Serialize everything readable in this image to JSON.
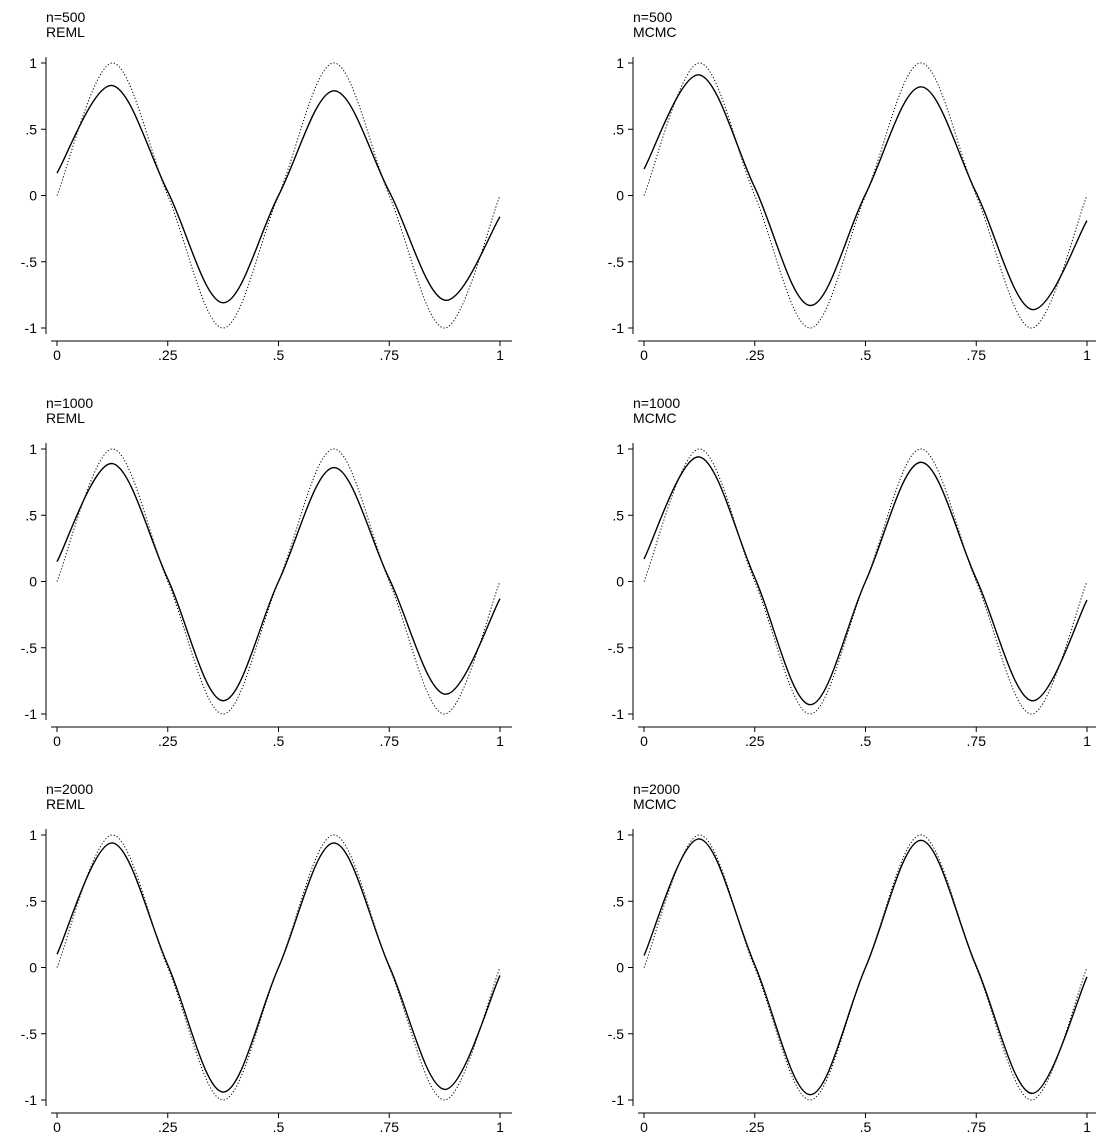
{
  "chart_data": [
    {
      "type": "line",
      "title": "n=500",
      "subtitle": "REML",
      "xlim": [
        0,
        1
      ],
      "ylim": [
        -1,
        1
      ],
      "xticks": [
        0,
        0.25,
        0.5,
        0.75,
        1
      ],
      "xtick_labels": [
        "0",
        ".25",
        ".5",
        ".75",
        "1"
      ],
      "yticks": [
        1,
        0.5,
        0,
        -0.5,
        -1
      ],
      "ytick_labels": [
        "1",
        ".5",
        "0",
        "-.5",
        "-1"
      ],
      "grid": false,
      "series": [
        {
          "style": "solid",
          "x": [
            0,
            0.125,
            0.25,
            0.375,
            0.5,
            0.625,
            0.75,
            0.875,
            1
          ],
          "y": [
            0.17,
            0.83,
            0.03,
            -0.81,
            0.0,
            0.79,
            0.03,
            -0.79,
            -0.16
          ]
        },
        {
          "style": "dotted",
          "x": [
            0,
            0.125,
            0.25,
            0.375,
            0.5,
            0.625,
            0.75,
            0.875,
            1
          ],
          "y": [
            0,
            1,
            0,
            -1,
            0,
            1,
            0,
            -1,
            0
          ]
        }
      ]
    },
    {
      "type": "line",
      "title": "n=500",
      "subtitle": "MCMC",
      "xlim": [
        0,
        1
      ],
      "ylim": [
        -1,
        1
      ],
      "xticks": [
        0,
        0.25,
        0.5,
        0.75,
        1
      ],
      "xtick_labels": [
        "0",
        ".25",
        ".5",
        ".75",
        "1"
      ],
      "yticks": [
        1,
        0.5,
        0,
        -0.5,
        -1
      ],
      "ytick_labels": [
        "1",
        ".5",
        "0",
        "-.5",
        "-1"
      ],
      "grid": false,
      "series": [
        {
          "style": "solid",
          "x": [
            0,
            0.125,
            0.25,
            0.375,
            0.5,
            0.625,
            0.75,
            0.875,
            1
          ],
          "y": [
            0.2,
            0.91,
            0.06,
            -0.83,
            0.01,
            0.82,
            0.02,
            -0.86,
            -0.19
          ]
        },
        {
          "style": "dotted",
          "x": [
            0,
            0.125,
            0.25,
            0.375,
            0.5,
            0.625,
            0.75,
            0.875,
            1
          ],
          "y": [
            0,
            1,
            0,
            -1,
            0,
            1,
            0,
            -1,
            0
          ]
        }
      ]
    },
    {
      "type": "line",
      "title": "n=1000",
      "subtitle": "REML",
      "xlim": [
        0,
        1
      ],
      "ylim": [
        -1,
        1
      ],
      "xticks": [
        0,
        0.25,
        0.5,
        0.75,
        1
      ],
      "xtick_labels": [
        "0",
        ".25",
        ".5",
        ".75",
        "1"
      ],
      "yticks": [
        1,
        0.5,
        0,
        -0.5,
        -1
      ],
      "ytick_labels": [
        "1",
        ".5",
        "0",
        "-.5",
        "-1"
      ],
      "grid": false,
      "series": [
        {
          "style": "solid",
          "x": [
            0,
            0.125,
            0.25,
            0.375,
            0.5,
            0.625,
            0.75,
            0.875,
            1
          ],
          "y": [
            0.15,
            0.89,
            0.02,
            -0.9,
            0.0,
            0.86,
            0.02,
            -0.85,
            -0.13
          ]
        },
        {
          "style": "dotted",
          "x": [
            0,
            0.125,
            0.25,
            0.375,
            0.5,
            0.625,
            0.75,
            0.875,
            1
          ],
          "y": [
            0,
            1,
            0,
            -1,
            0,
            1,
            0,
            -1,
            0
          ]
        }
      ]
    },
    {
      "type": "line",
      "title": "n=1000",
      "subtitle": "MCMC",
      "xlim": [
        0,
        1
      ],
      "ylim": [
        -1,
        1
      ],
      "xticks": [
        0,
        0.25,
        0.5,
        0.75,
        1
      ],
      "xtick_labels": [
        "0",
        ".25",
        ".5",
        ".75",
        "1"
      ],
      "yticks": [
        1,
        0.5,
        0,
        -0.5,
        -1
      ],
      "ytick_labels": [
        "1",
        ".5",
        "0",
        "-.5",
        "-1"
      ],
      "grid": false,
      "series": [
        {
          "style": "solid",
          "x": [
            0,
            0.125,
            0.25,
            0.375,
            0.5,
            0.625,
            0.75,
            0.875,
            1
          ],
          "y": [
            0.17,
            0.94,
            0.03,
            -0.93,
            0.0,
            0.9,
            0.02,
            -0.9,
            -0.14
          ]
        },
        {
          "style": "dotted",
          "x": [
            0,
            0.125,
            0.25,
            0.375,
            0.5,
            0.625,
            0.75,
            0.875,
            1
          ],
          "y": [
            0,
            1,
            0,
            -1,
            0,
            1,
            0,
            -1,
            0
          ]
        }
      ]
    },
    {
      "type": "line",
      "title": "n=2000",
      "subtitle": "REML",
      "xlim": [
        0,
        1
      ],
      "ylim": [
        -1,
        1
      ],
      "xticks": [
        0,
        0.25,
        0.5,
        0.75,
        1
      ],
      "xtick_labels": [
        "0",
        ".25",
        ".5",
        ".75",
        "1"
      ],
      "yticks": [
        1,
        0.5,
        0,
        -0.5,
        -1
      ],
      "ytick_labels": [
        "1",
        ".5",
        "0",
        "-.5",
        "-1"
      ],
      "grid": false,
      "series": [
        {
          "style": "solid",
          "x": [
            0,
            0.125,
            0.25,
            0.375,
            0.5,
            0.625,
            0.75,
            0.875,
            1
          ],
          "y": [
            0.1,
            0.94,
            0.02,
            -0.94,
            0.0,
            0.94,
            0.01,
            -0.92,
            -0.06
          ]
        },
        {
          "style": "dotted",
          "x": [
            0,
            0.125,
            0.25,
            0.375,
            0.5,
            0.625,
            0.75,
            0.875,
            1
          ],
          "y": [
            0,
            1,
            0,
            -1,
            0,
            1,
            0,
            -1,
            0
          ]
        }
      ]
    },
    {
      "type": "line",
      "title": "n=2000",
      "subtitle": "MCMC",
      "xlim": [
        0,
        1
      ],
      "ylim": [
        -1,
        1
      ],
      "xticks": [
        0,
        0.25,
        0.5,
        0.75,
        1
      ],
      "xtick_labels": [
        "0",
        ".25",
        ".5",
        ".75",
        "1"
      ],
      "yticks": [
        1,
        0.5,
        0,
        -0.5,
        -1
      ],
      "ytick_labels": [
        "1",
        ".5",
        "0",
        "-.5",
        "-1"
      ],
      "grid": false,
      "series": [
        {
          "style": "solid",
          "x": [
            0,
            0.125,
            0.25,
            0.375,
            0.5,
            0.625,
            0.75,
            0.875,
            1
          ],
          "y": [
            0.09,
            0.97,
            0.02,
            -0.96,
            0.0,
            0.96,
            0.01,
            -0.95,
            -0.07
          ]
        },
        {
          "style": "dotted",
          "x": [
            0,
            0.125,
            0.25,
            0.375,
            0.5,
            0.625,
            0.75,
            0.875,
            1
          ],
          "y": [
            0,
            1,
            0,
            -1,
            0,
            1,
            0,
            -1,
            0
          ]
        }
      ]
    }
  ]
}
